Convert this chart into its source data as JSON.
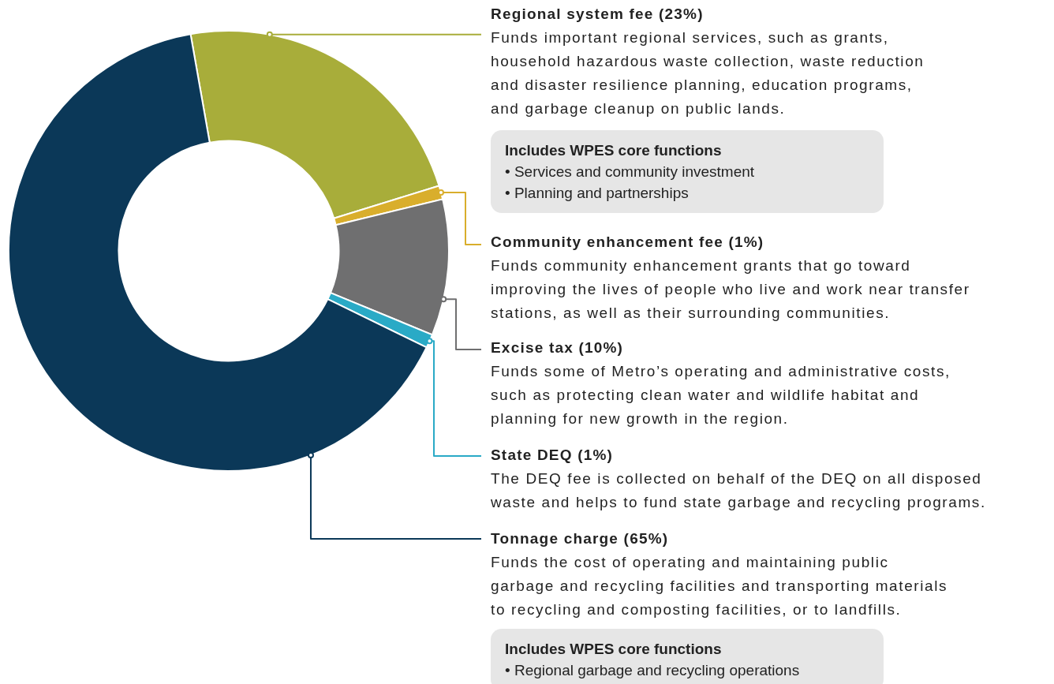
{
  "chart_data": {
    "type": "donut",
    "categories": [
      "Regional system fee (23%)",
      "Community enhancement fee (1%)",
      "Excise tax (10%)",
      "State DEQ (1%)",
      "Tonnage charge (65%)"
    ],
    "values": [
      23,
      1,
      10,
      1,
      65
    ],
    "colors": [
      "#a8ad3a",
      "#d9ae2c",
      "#6f6f70",
      "#2aaac6",
      "#0b3858"
    ],
    "annotations": [
      "Funds important regional services, such as grants,\nhousehold hazardous waste collection, waste reduction\nand disaster resilience planning, education programs,\nand garbage cleanup on public lands.",
      "Includes WPES core functions\n• Services and community investment\n• Planning and partnerships",
      "Funds community enhancement grants that go toward\nimproving the lives of people who live and work near transfer\nstations, as well as their surrounding communities.",
      "Funds some of Metro’s operating and administrative costs,\nsuch as protecting clean water and wildlife habitat and\nplanning for new growth in the region.",
      "The DEQ fee is collected on behalf of the DEQ on all disposed\nwaste and helps to fund state garbage and recycling programs.",
      "Funds the cost of operating and maintaining public\ngarbage and recycling facilities and transporting materials\nto recycling and composting facilities, or to landfills.",
      "Includes WPES core functions\n• Regional garbage and recycling operations"
    ]
  }
}
